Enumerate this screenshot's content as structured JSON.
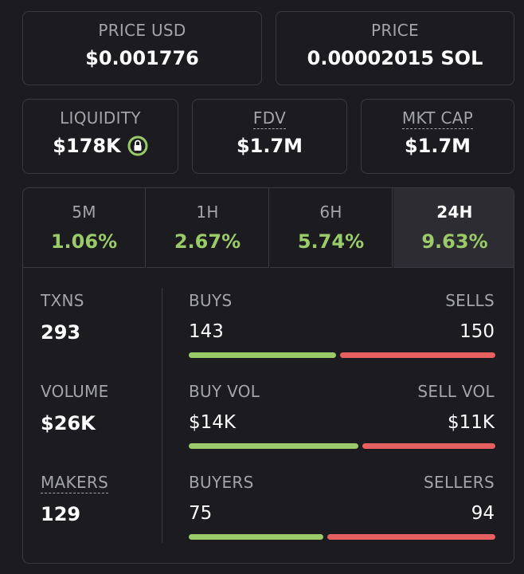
{
  "price_usd": {
    "label": "PRICE USD",
    "value": "$0.001776"
  },
  "price": {
    "label": "PRICE",
    "value": "0.00002015 SOL"
  },
  "metrics": [
    {
      "label": "LIQUIDITY",
      "value": "$178K"
    },
    {
      "label": "FDV",
      "value": "$1.7M"
    },
    {
      "label": "MKT CAP",
      "value": "$1.7M"
    }
  ],
  "timeframes": [
    {
      "label": "5M",
      "change": "1.06%"
    },
    {
      "label": "1H",
      "change": "2.67%"
    },
    {
      "label": "6H",
      "change": "5.74%"
    },
    {
      "label": "24H",
      "change": "9.63%"
    }
  ],
  "selected_timeframe": "24H",
  "stats": [
    {
      "label": "TXNS",
      "value": "293",
      "left": {
        "label": "BUYS",
        "value": 143
      },
      "right": {
        "label": "SELLS",
        "value": 150
      }
    },
    {
      "label": "VOLUME",
      "value": "$26K",
      "left": {
        "label": "BUY VOL",
        "value": 14000,
        "value_label": "$14K"
      },
      "right": {
        "label": "SELL VOL",
        "value": 11000,
        "value_label": "$11K"
      }
    },
    {
      "label": "MAKERS",
      "value": "129",
      "left": {
        "label": "BUYERS",
        "value": 75
      },
      "right": {
        "label": "SELLERS",
        "value": 94
      }
    }
  ]
}
